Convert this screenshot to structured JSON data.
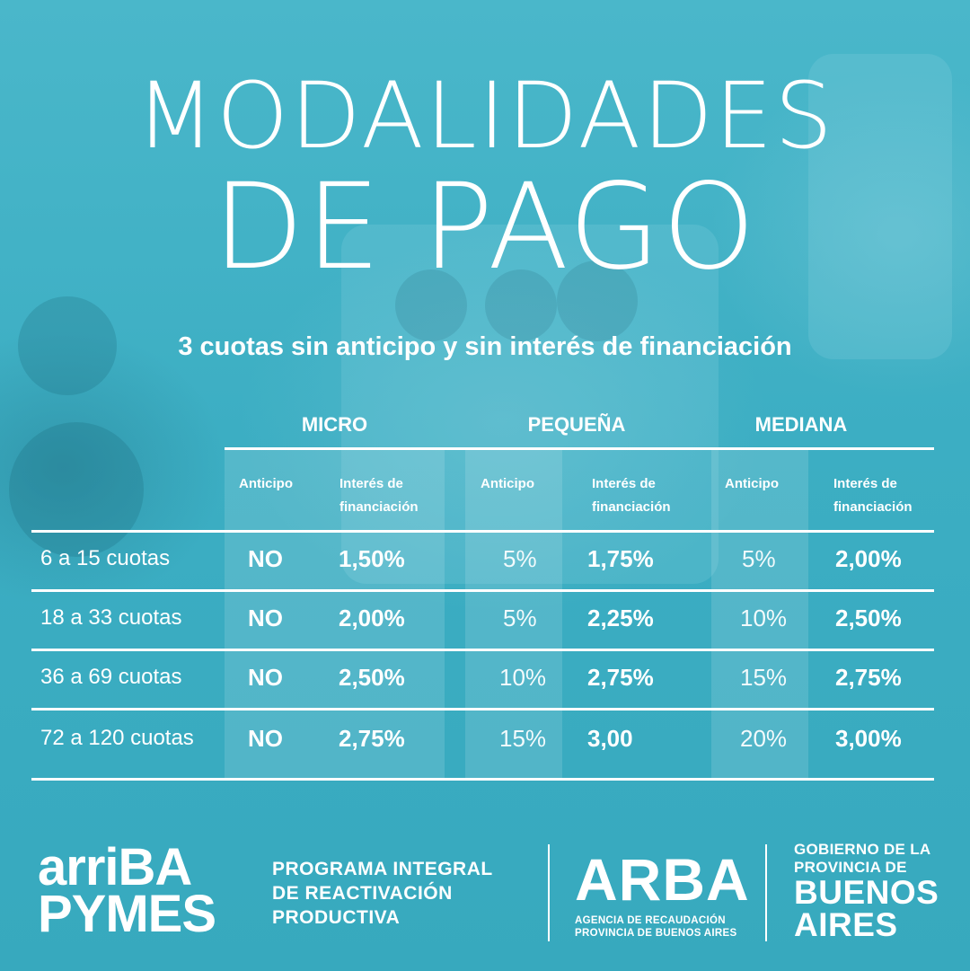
{
  "title_line1": "MODALIDADES",
  "title_line2": "DE PAGO",
  "subtitle": "3 cuotas sin anticipo y sin interés de financiación",
  "table": {
    "groups": [
      "MICRO",
      "PEQUEÑA",
      "MEDIANA"
    ],
    "subheaders": {
      "anticipo": "Anticipo",
      "interes_line1": "Interés de",
      "interes_line2": "financiación"
    },
    "rows": [
      {
        "label": "6 a 15 cuotas",
        "micro_anticipo": "NO",
        "micro_interes": "1,50%",
        "pequena_anticipo": "5%",
        "pequena_interes": "1,75%",
        "mediana_anticipo": "5%",
        "mediana_interes": "2,00%"
      },
      {
        "label": "18 a 33 cuotas",
        "micro_anticipo": "NO",
        "micro_interes": "2,00%",
        "pequena_anticipo": "5%",
        "pequena_interes": "2,25%",
        "mediana_anticipo": "10%",
        "mediana_interes": "2,50%"
      },
      {
        "label": "36 a 69 cuotas",
        "micro_anticipo": "NO",
        "micro_interes": "2,50%",
        "pequena_anticipo": "10%",
        "pequena_interes": "2,75%",
        "mediana_anticipo": "15%",
        "mediana_interes": "2,75%"
      },
      {
        "label": "72 a 120 cuotas",
        "micro_anticipo": "NO",
        "micro_interes": "2,75%",
        "pequena_anticipo": "15%",
        "pequena_interes": "3,00",
        "mediana_anticipo": "20%",
        "mediana_interes": "3,00%"
      }
    ]
  },
  "footer": {
    "logo_line1": "arriBA",
    "logo_line2": "PYMES",
    "program_lines": [
      "PROGRAMA INTEGRAL",
      "DE REACTIVACIÓN",
      "PRODUCTIVA"
    ],
    "arba": "ARBA",
    "arba_sub_lines": [
      "AGENCIA DE RECAUDACIÓN",
      "PROVINCIA DE BUENOS AIRES"
    ],
    "gob_small_lines": [
      "GOBIERNO DE LA",
      "PROVINCIA DE"
    ],
    "gob_big_lines": [
      "BUENOS",
      "AIRES"
    ]
  },
  "colors": {
    "background": "#3fb1c5",
    "text": "#ffffff"
  }
}
